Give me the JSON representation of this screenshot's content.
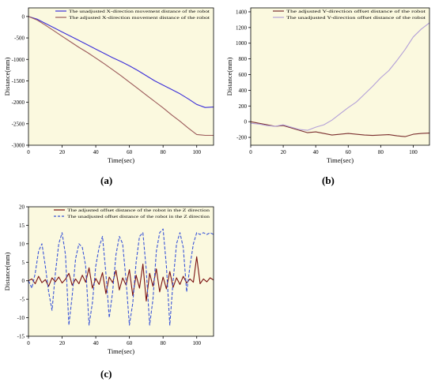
{
  "chart_data": [
    {
      "id": "a",
      "type": "line",
      "xlabel": "Time(sec)",
      "ylabel": "Distance(mm)",
      "xlim": [
        0,
        110
      ],
      "ylim": [
        -3000,
        200
      ],
      "xticks": [
        0,
        20,
        40,
        60,
        80,
        100
      ],
      "yticks": [
        -3000,
        -2500,
        -2000,
        -1500,
        -1000,
        -500,
        0
      ],
      "legend": "top-right",
      "series": [
        {
          "name": "The unadjusted X-direction movement distance of the robot",
          "color": "#3b2fd9",
          "x": [
            0,
            5,
            10,
            15,
            20,
            25,
            30,
            35,
            40,
            45,
            50,
            55,
            60,
            65,
            70,
            75,
            80,
            85,
            90,
            95,
            100,
            105,
            110
          ],
          "y": [
            0,
            -60,
            -160,
            -260,
            -360,
            -460,
            -560,
            -660,
            -760,
            -860,
            -960,
            -1050,
            -1150,
            -1260,
            -1380,
            -1500,
            -1600,
            -1700,
            -1800,
            -1920,
            -2050,
            -2120,
            -2110
          ]
        },
        {
          "name": "The adjusted X-direction movement distance of the robot",
          "color": "#9b5a5a",
          "x": [
            0,
            5,
            10,
            15,
            20,
            25,
            30,
            35,
            40,
            45,
            50,
            55,
            60,
            65,
            70,
            75,
            80,
            85,
            90,
            95,
            100,
            105,
            110
          ],
          "y": [
            0,
            -80,
            -200,
            -330,
            -460,
            -590,
            -720,
            -840,
            -970,
            -1100,
            -1240,
            -1380,
            -1530,
            -1680,
            -1830,
            -1980,
            -2130,
            -2290,
            -2440,
            -2600,
            -2750,
            -2770,
            -2770
          ]
        }
      ]
    },
    {
      "id": "b",
      "type": "line",
      "xlabel": "Time(sec)",
      "ylabel": "Distance(mm)",
      "xlim": [
        0,
        110
      ],
      "ylim": [
        -300,
        1450
      ],
      "xticks": [
        0,
        20,
        40,
        60,
        80,
        100
      ],
      "yticks": [
        -200,
        0,
        200,
        400,
        600,
        800,
        1000,
        1200,
        1400
      ],
      "legend": "top-right",
      "series": [
        {
          "name": "The adjusted Y-direction offset distance of the robot",
          "color": "#7a2e2e",
          "x": [
            0,
            5,
            10,
            15,
            20,
            25,
            30,
            35,
            40,
            45,
            50,
            55,
            60,
            65,
            70,
            75,
            80,
            85,
            90,
            95,
            100,
            105,
            110
          ],
          "y": [
            0,
            -20,
            -40,
            -60,
            -50,
            -80,
            -110,
            -140,
            -130,
            -150,
            -170,
            -160,
            -150,
            -160,
            -170,
            -175,
            -170,
            -165,
            -180,
            -190,
            -160,
            -150,
            -145
          ]
        },
        {
          "name": "The unadjusted Y-direction offset distance of the robot",
          "color": "#b3a0d8",
          "x": [
            0,
            5,
            10,
            15,
            20,
            25,
            30,
            35,
            40,
            45,
            50,
            55,
            60,
            65,
            70,
            75,
            80,
            85,
            90,
            95,
            100,
            105,
            110
          ],
          "y": [
            -20,
            -30,
            -50,
            -60,
            -40,
            -70,
            -100,
            -110,
            -70,
            -40,
            20,
            100,
            180,
            250,
            350,
            450,
            560,
            650,
            780,
            920,
            1080,
            1180,
            1260
          ]
        }
      ]
    },
    {
      "id": "c",
      "type": "line",
      "xlabel": "Time(sec)",
      "ylabel": "Distance(mm)",
      "xlim": [
        0,
        110
      ],
      "ylim": [
        -15,
        20
      ],
      "xticks": [
        0,
        20,
        40,
        60,
        80,
        100
      ],
      "yticks": [
        -15,
        -10,
        -5,
        0,
        5,
        10,
        15,
        20
      ],
      "legend": "top-right",
      "series": [
        {
          "name": "The adjusted offset distance of the robot in the Z direction",
          "color": "#7a1010",
          "style": "solid",
          "x": [
            0,
            2,
            4,
            6,
            8,
            10,
            12,
            14,
            16,
            18,
            20,
            22,
            24,
            26,
            28,
            30,
            32,
            34,
            36,
            38,
            40,
            42,
            44,
            46,
            48,
            50,
            52,
            54,
            56,
            58,
            60,
            62,
            64,
            66,
            68,
            70,
            72,
            74,
            76,
            78,
            80,
            82,
            84,
            86,
            88,
            90,
            92,
            94,
            96,
            98,
            100,
            102,
            104,
            106,
            108,
            110
          ],
          "y": [
            0,
            0.5,
            -0.8,
            1.2,
            -0.5,
            0.3,
            -1.5,
            0.8,
            -0.3,
            1.0,
            -0.6,
            0.4,
            2.0,
            -1.2,
            0.5,
            -0.8,
            1.5,
            -0.4,
            3.5,
            -2.0,
            0.6,
            -1.0,
            2.2,
            -3.5,
            1.0,
            -0.5,
            2.8,
            -2.5,
            0.8,
            -1.2,
            3.0,
            -4.0,
            1.5,
            -2.0,
            4.5,
            -5.5,
            2.0,
            -1.5,
            3.2,
            -3.0,
            1.0,
            -2.2,
            2.5,
            -1.8,
            0.8,
            -1.0,
            1.2,
            -0.6,
            0.5,
            -0.4,
            6.5,
            -0.8,
            0.5,
            -0.3,
            0.8,
            0.2
          ]
        },
        {
          "name": "The unadjusted offset distance of the robot in the Z direction",
          "color": "#3a55d8",
          "style": "dashed",
          "x": [
            0,
            2,
            4,
            6,
            8,
            10,
            12,
            14,
            16,
            18,
            20,
            22,
            24,
            26,
            28,
            30,
            32,
            34,
            36,
            38,
            40,
            42,
            44,
            46,
            48,
            50,
            52,
            54,
            56,
            58,
            60,
            62,
            64,
            66,
            68,
            70,
            72,
            74,
            76,
            78,
            80,
            82,
            84,
            86,
            88,
            90,
            92,
            94,
            96,
            98,
            100,
            102,
            104,
            106,
            108,
            110
          ],
          "y": [
            0,
            -2,
            2,
            8,
            10,
            4,
            -3,
            -8,
            2,
            10,
            13,
            7,
            -12,
            -4,
            6,
            10,
            9,
            4,
            -12,
            -6,
            4,
            9,
            12,
            2,
            -10,
            -3,
            7,
            12,
            10,
            0,
            -12,
            -6,
            5,
            12,
            13,
            3,
            -12,
            -5,
            8,
            13,
            14,
            4,
            -12,
            0,
            10,
            13,
            9,
            -3,
            4,
            10,
            13,
            12.5,
            13,
            12.5,
            13,
            12.5
          ]
        }
      ]
    }
  ],
  "panel_labels": {
    "a": "(a)",
    "b": "(b)",
    "c": "(c)"
  },
  "colors": {
    "plot_bg": "#fbf9df",
    "axis": "#000000"
  }
}
